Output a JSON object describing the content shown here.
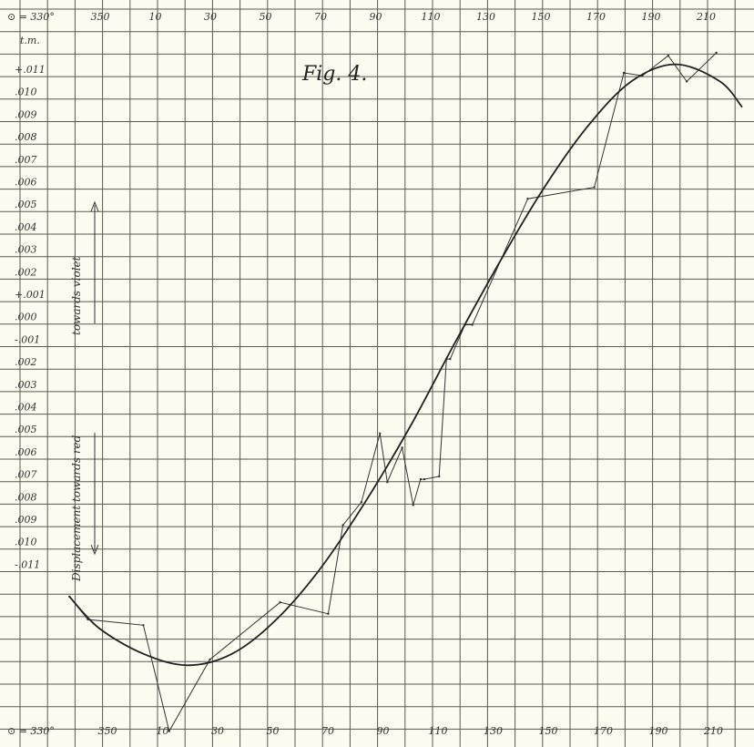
{
  "chart_data": {
    "type": "line",
    "title": "Fig. 4.",
    "y_unit_label": "t.m.",
    "x_top_prefix": "⊙ = 330°",
    "x_bottom_prefix": "⊙ = 330°",
    "x_ticks_top": [
      "350",
      "10",
      "30",
      "50",
      "70",
      "90",
      "110",
      "130",
      "150",
      "170",
      "190",
      "210"
    ],
    "x_ticks_bottom": [
      "350",
      "10",
      "30",
      "50",
      "70",
      "90",
      "110",
      "130",
      "150",
      "170",
      "190",
      "210"
    ],
    "y_ticks": [
      "+.011",
      ".010",
      ".009",
      ".008",
      ".007",
      ".006",
      ".005",
      ".004",
      ".003",
      ".002",
      "+.001",
      ".000",
      "-.001",
      ".002",
      ".003",
      ".004",
      ".005",
      ".006",
      ".007",
      ".008",
      ".009",
      ".010",
      "-.011"
    ],
    "annotation_violet": "towards violet",
    "annotation_red": "Displacement towards red",
    "series": [
      {
        "kind": "observed",
        "x": [
          326,
          331,
          346,
          353,
          364,
          383,
          396,
          400,
          405,
          410,
          412,
          416,
          419,
          421,
          422,
          426,
          428,
          429,
          433,
          435,
          450,
          468,
          476,
          481,
          488,
          493,
          501
        ],
        "y": [
          -0.0082,
          -0.009,
          -0.0092,
          -0.0129,
          -0.0104,
          -0.0084,
          -0.0088,
          -0.0057,
          -0.0049,
          -0.0025,
          -0.0042,
          -0.003,
          -0.005,
          -0.0041,
          -0.0041,
          -0.004,
          0.0001,
          0.0001,
          0.0013,
          0.0013,
          0.0057,
          0.0061,
          0.0101,
          0.01,
          0.0107,
          0.0098,
          0.0108
        ]
      },
      {
        "kind": "smooth",
        "x": [
          326,
          334,
          346,
          358,
          370,
          382,
          394,
          406,
          418,
          430,
          442,
          454,
          466,
          478,
          490,
          502,
          508
        ],
        "y": [
          -0.0082,
          -0.0093,
          -0.0102,
          -0.0106,
          -0.0102,
          -0.009,
          -0.0072,
          -0.0049,
          -0.0023,
          0.0006,
          0.0034,
          0.006,
          0.0082,
          0.0098,
          0.0104,
          0.0098,
          0.0089
        ]
      }
    ],
    "xlim": [
      322,
      508
    ],
    "ylim": [
      -0.0125,
      0.0115
    ],
    "grid": true
  }
}
